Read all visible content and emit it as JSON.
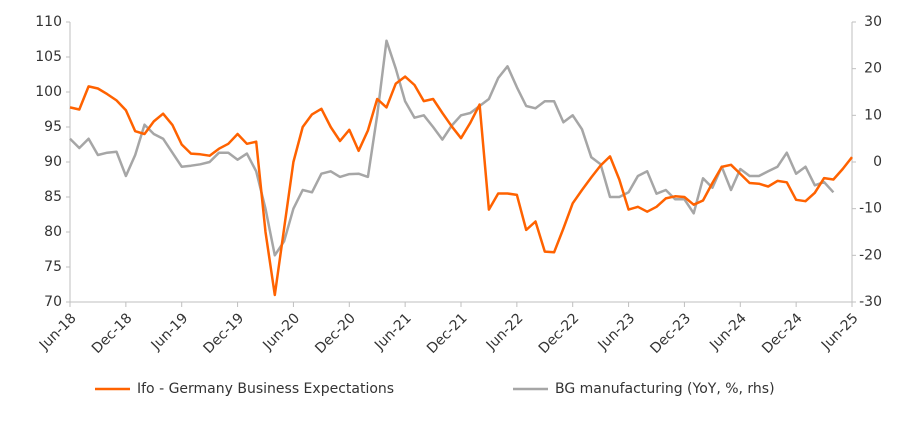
{
  "chart_data": {
    "type": "line",
    "categories": [
      "Jun-18",
      null,
      null,
      null,
      null,
      null,
      "Dec-18",
      null,
      null,
      null,
      null,
      null,
      "Jun-19",
      null,
      null,
      null,
      null,
      null,
      "Dec-19",
      null,
      null,
      null,
      null,
      null,
      "Jun-20",
      null,
      null,
      null,
      null,
      null,
      "Dec-20",
      null,
      null,
      null,
      null,
      null,
      "Jun-21",
      null,
      null,
      null,
      null,
      null,
      "Dec-21",
      null,
      null,
      null,
      null,
      null,
      "Jun-22",
      null,
      null,
      null,
      null,
      null,
      "Dec-22",
      null,
      null,
      null,
      null,
      null,
      "Jun-23",
      null,
      null,
      null,
      null,
      null,
      "Dec-23",
      null,
      null,
      null,
      null,
      null,
      "Jun-24",
      null,
      null,
      null,
      null,
      null,
      "Dec-24",
      null,
      null,
      null,
      null,
      null,
      "Jun-25"
    ],
    "series": [
      {
        "name": "Ifo - Germany Business Expectations",
        "color": "#ff6200",
        "axis": "y",
        "values": [
          97.8,
          97.5,
          100.8,
          100.5,
          99.7,
          98.8,
          97.4,
          94.4,
          94.0,
          95.8,
          96.9,
          95.3,
          92.5,
          91.2,
          91.1,
          90.9,
          91.9,
          92.6,
          94.0,
          92.6,
          92.9,
          80.0,
          71.0,
          80.5,
          90.0,
          95.0,
          96.8,
          97.6,
          95.0,
          93.0,
          94.6,
          91.6,
          94.5,
          99.0,
          97.8,
          101.2,
          102.2,
          101.0,
          98.7,
          99.0,
          97.0,
          95.1,
          93.4,
          95.6,
          98.2,
          83.2,
          85.5,
          85.5,
          85.3,
          80.3,
          81.5,
          77.2,
          77.1,
          80.5,
          84.1,
          86.0,
          87.8,
          89.5,
          90.8,
          87.5,
          83.2,
          83.6,
          82.9,
          83.6,
          84.8,
          85.1,
          85.0,
          83.9,
          84.5,
          87.0,
          89.3,
          89.6,
          88.3,
          87.0,
          86.9,
          86.5,
          87.3,
          87.1,
          84.6,
          84.4,
          85.6,
          87.7,
          87.5,
          89.0,
          90.7
        ]
      },
      {
        "name": "BG manufacturing (YoY, %, rhs)",
        "color": "#a6a6a6",
        "axis": "y2",
        "values": [
          5,
          3,
          5,
          1.5,
          2,
          2.2,
          -3,
          1.5,
          8,
          6,
          5,
          2,
          -1,
          -0.8,
          -0.5,
          0,
          2,
          2,
          0.5,
          1.8,
          -2,
          -10,
          -20,
          -17,
          -10,
          -6,
          -6.5,
          -2.5,
          -2,
          -3.2,
          -2.6,
          -2.5,
          -3.2,
          10,
          26,
          20,
          13,
          9.5,
          10,
          7.5,
          4.8,
          7.8,
          10,
          10.5,
          12,
          13.5,
          18,
          20.5,
          16,
          12,
          11.5,
          13,
          13,
          8.5,
          10,
          7,
          1,
          -0.5,
          -7.5,
          -7.5,
          -6.5,
          -3,
          -2,
          -6.8,
          -6,
          -8,
          -8,
          -11,
          -3.5,
          -5.5,
          -1,
          -6,
          -1.5,
          -3,
          -3,
          -2,
          -1,
          2,
          -2.5,
          -1,
          -5,
          -4.3,
          -6.5,
          null,
          null
        ]
      }
    ],
    "ylim": [
      70,
      110
    ],
    "yticks": [
      70,
      75,
      80,
      85,
      90,
      95,
      100,
      105,
      110
    ],
    "y2lim": [
      -30,
      30
    ],
    "y2ticks": [
      -30,
      -20,
      -10,
      0,
      10,
      20,
      30
    ],
    "legend": "bottom"
  }
}
